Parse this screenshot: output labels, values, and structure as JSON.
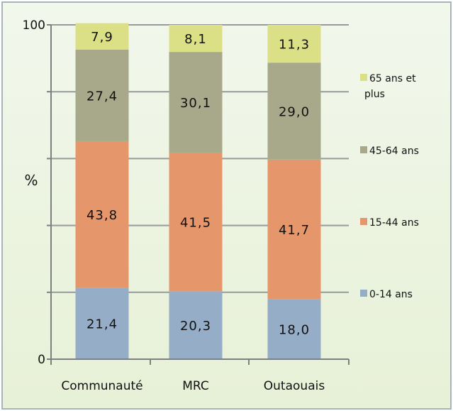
{
  "chart_data": {
    "type": "bar",
    "stacked": true,
    "categories": [
      "Communauté",
      "MRC",
      "Outaouais"
    ],
    "series": [
      {
        "name": "0-14 ans",
        "values": [
          21.4,
          20.3,
          18.0
        ],
        "labels": [
          "21,4",
          "20,3",
          "18,0"
        ],
        "color": "#95adc6"
      },
      {
        "name": "15-44 ans",
        "values": [
          43.8,
          41.5,
          41.7
        ],
        "labels": [
          "43,8",
          "41,5",
          "41,7"
        ],
        "color": "#e5966a"
      },
      {
        "name": "45-64 ans",
        "values": [
          27.4,
          30.1,
          29.0
        ],
        "labels": [
          "27,4",
          "30,1",
          "29,0"
        ],
        "color": "#a7a98a"
      },
      {
        "name": "65 ans et plus",
        "values": [
          7.9,
          8.1,
          11.3
        ],
        "labels": [
          "7,9",
          "8,1",
          "11,3"
        ],
        "color": "#dbdf86"
      }
    ],
    "ylabel": "%",
    "ylim": [
      0,
      100
    ],
    "yticks": [
      "0",
      "100"
    ],
    "grid": true,
    "legend_position": "right"
  }
}
